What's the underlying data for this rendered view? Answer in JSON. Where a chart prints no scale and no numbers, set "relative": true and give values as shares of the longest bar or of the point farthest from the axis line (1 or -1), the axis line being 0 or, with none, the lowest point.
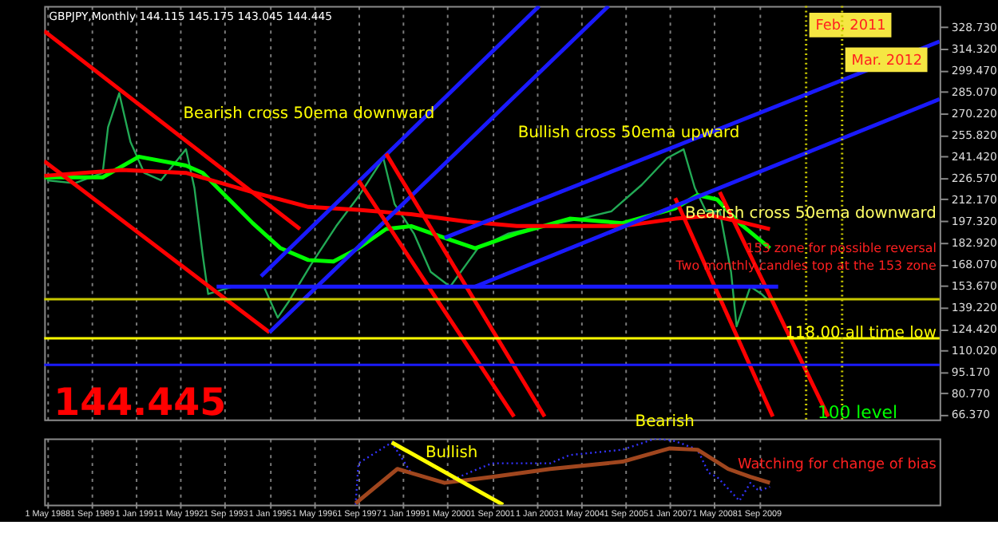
{
  "chart_data": [
    {
      "type": "line",
      "title": "GBPJPY,Monthly 144.115 145.175 143.045 144.445",
      "xlim": [
        "1988-04",
        "2015-02"
      ],
      "ylim": [
        63,
        343
      ],
      "xticks": [
        {
          "value": "1988-05-01",
          "label": null
        },
        {
          "value": "1989-09-01",
          "label": null
        },
        {
          "value": "1991-01-01",
          "label": null
        },
        {
          "value": "1992-05-01",
          "label": null
        },
        {
          "value": "1993-09-01",
          "label": null
        },
        {
          "value": "1995-01-01",
          "label": null
        },
        {
          "value": "1996-05-01",
          "label": null
        },
        {
          "value": "1997-09-01",
          "label": null
        },
        {
          "value": "1999-01-01",
          "label": null
        },
        {
          "value": "2000-05-01",
          "label": null
        },
        {
          "value": "2001-09-01",
          "label": null
        },
        {
          "value": "2003-01-01",
          "label": null
        },
        {
          "value": "2004-05-01",
          "label": null
        },
        {
          "value": "2005-09-01",
          "label": null
        },
        {
          "value": "2007-01-01",
          "label": null
        },
        {
          "value": "2008-05-01",
          "label": null
        },
        {
          "value": "2009-09-01",
          "label": null
        }
      ],
      "yticks": [
        {
          "value": 328.73,
          "label": "328.730"
        },
        {
          "value": 314.32,
          "label": "314.320"
        },
        {
          "value": 299.47,
          "label": "299.470"
        },
        {
          "value": 285.07,
          "label": "285.070"
        },
        {
          "value": 270.22,
          "label": "270.220"
        },
        {
          "value": 255.82,
          "label": "255.820"
        },
        {
          "value": 241.42,
          "label": "241.420"
        },
        {
          "value": 226.57,
          "label": "226.570"
        },
        {
          "value": 212.17,
          "label": "212.170"
        },
        {
          "value": 197.32,
          "label": "197.320"
        },
        {
          "value": 182.92,
          "label": "182.920"
        },
        {
          "value": 168.07,
          "label": "168.070"
        },
        {
          "value": 153.67,
          "label": "153.670"
        },
        {
          "value": 139.22,
          "label": "139.220"
        },
        {
          "value": 124.42,
          "label": "124.420"
        },
        {
          "value": 110.02,
          "label": "110.020"
        },
        {
          "value": 95.17,
          "label": "95.170"
        },
        {
          "value": 80.77,
          "label": "80.770"
        },
        {
          "value": 66.37,
          "label": "66.370"
        }
      ],
      "tick_labels": "y",
      "grid": "x",
      "series": [
        {
          "color": "#22aa55",
          "x": [
            "1988-05",
            "1989-03",
            "1990-01",
            "1990-03",
            "1990-07",
            "1990-11",
            "1991-04",
            "1991-10",
            "1992-07",
            "1992-10",
            "1993-01",
            "1993-03",
            "1993-12",
            "1994-11",
            "1995-04",
            "1995-08",
            "1996-04",
            "1997-01",
            "1997-09",
            "1998-06",
            "1998-10",
            "1999-05",
            "1999-11",
            "2000-06",
            "2001-04",
            "2002-03",
            "2003-03",
            "2004-05",
            "2005-04",
            "2006-03",
            "2006-12",
            "2007-06",
            "2007-10",
            "2008-02",
            "2008-07",
            "2008-11",
            "2009-01",
            "2009-06",
            "2009-10",
            "2009-12"
          ],
          "values": [
            225,
            223,
            230,
            261,
            284,
            251,
            230,
            225,
            246,
            220,
            174,
            148,
            153,
            153,
            132,
            143,
            168,
            194,
            214,
            240,
            209,
            189,
            163,
            153,
            179,
            189,
            194,
            199,
            204,
            222,
            240,
            246,
            220,
            204,
            204,
            163,
            126,
            153,
            148,
            144.445
          ]
        },
        {
          "color": "#00ff00",
          "x": [
            "1988-04",
            "1990-01",
            "1991-02",
            "1992-07",
            "1993-01",
            "1993-10",
            "1994-07",
            "1995-05",
            "1996-03",
            "1996-12",
            "1997-09",
            "1998-07",
            "1999-04",
            "2000-04",
            "2001-03",
            "2002-06",
            "2004-01",
            "2005-08",
            "2007-03",
            "2007-11",
            "2008-06",
            "2009-02",
            "2010-01"
          ],
          "values": [
            227,
            227,
            241,
            235,
            230,
            213,
            196,
            179,
            171,
            170,
            179,
            192,
            194,
            186,
            179,
            189,
            199,
            196,
            206,
            215,
            212,
            196,
            179
          ]
        },
        {
          "color": "#ff0000",
          "x": [
            "1988-04",
            "1990-08",
            "1992-07",
            "1994-07",
            "1996-03",
            "1997-09",
            "1999-04",
            "2000-12",
            "2002-06",
            "2005-08",
            "2007-03",
            "2008-04",
            "2009-02",
            "2010-01"
          ],
          "values": [
            228,
            232,
            230,
            217,
            207,
            205,
            202,
            197,
            194,
            194,
            199,
            201,
            197,
            192
          ]
        },
        {
          "color": "#ff0000",
          "x": [
            "1988-04",
            "1995-12"
          ],
          "values": [
            326,
            192
          ]
        },
        {
          "color": "#ff0000",
          "x": [
            "1988-04",
            "1995-01"
          ],
          "values": [
            238,
            122
          ]
        },
        {
          "color": "#1a1aff",
          "x": [
            "1994-10",
            "2003-02"
          ],
          "values": [
            160,
            343
          ]
        },
        {
          "color": "#1a1aff",
          "x": [
            "1995-01",
            "2005-03"
          ],
          "values": [
            122,
            343
          ]
        },
        {
          "color": "#ff0000",
          "x": [
            "1997-09",
            "2002-05"
          ],
          "values": [
            225,
            65
          ]
        },
        {
          "color": "#ff0000",
          "x": [
            "1998-07",
            "2003-04"
          ],
          "values": [
            243,
            65
          ]
        },
        {
          "color": "#ff0000",
          "x": [
            "2007-03",
            "2010-02"
          ],
          "values": [
            213,
            65
          ]
        },
        {
          "color": "#ff0000",
          "x": [
            "2008-07",
            "2011-10"
          ],
          "values": [
            217,
            65
          ]
        },
        {
          "color": "#1a1aff",
          "x": [
            "2000-04",
            "2015-02"
          ],
          "values": [
            186,
            319
          ]
        },
        {
          "color": "#1a1aff",
          "x": [
            "2001-03",
            "2015-02"
          ],
          "values": [
            153,
            280
          ]
        },
        {
          "color": "#1a1aff",
          "x": [
            "1993-06",
            "2010-04"
          ],
          "values": [
            153,
            153
          ]
        }
      ],
      "ref_lines": [
        {
          "axis": "y",
          "value": 144.445,
          "color": "#c8c800"
        },
        {
          "axis": "y",
          "value": 118,
          "color": "#ffff00"
        },
        {
          "axis": "y",
          "value": 100,
          "color": "#1a1aff"
        },
        {
          "axis": "x",
          "value": "2011-02",
          "label": "Feb. 2011",
          "color": "#c8c800",
          "line_style": "dotted"
        },
        {
          "axis": "x",
          "value": "2012-03",
          "label": "Mar. 2012",
          "color": "#c8c800",
          "line_style": "dotted"
        }
      ],
      "annotations": [
        "Bearish cross 50ema downward",
        "Bullish cross 50ema upward",
        "Bearish cross 50ema downward",
        "153 zone for possible reversal",
        "Two monthly candles top at the 153 zone",
        "118.00 all time low",
        "100 level",
        "144.445",
        "Bearish"
      ]
    },
    {
      "type": "line",
      "relative": true,
      "xlim": [
        "1988-04",
        "2015-02"
      ],
      "xticks": [
        {
          "value": "1988-05-01",
          "label": "1 May 1988"
        },
        {
          "value": "1989-09-01",
          "label": "1 Sep 1989"
        },
        {
          "value": "1991-01-01",
          "label": "1 Jan 1991"
        },
        {
          "value": "1992-05-01",
          "label": "1 May 1992"
        },
        {
          "value": "1993-09-01",
          "label": "1 Sep 1993"
        },
        {
          "value": "1995-01-01",
          "label": "1 Jan 1995"
        },
        {
          "value": "1996-05-01",
          "label": "1 May 1996"
        },
        {
          "value": "1997-09-01",
          "label": "1 Sep 1997"
        },
        {
          "value": "1999-01-01",
          "label": "1 Jan 1999"
        },
        {
          "value": "2000-05-01",
          "label": "1 May 2000"
        },
        {
          "value": "2001-09-01",
          "label": "1 Sep 2001"
        },
        {
          "value": "2003-01-01",
          "label": "1 Jan 2003"
        },
        {
          "value": "2004-05-01",
          "label": "1 May 2004"
        },
        {
          "value": "2005-09-01",
          "label": "1 Sep 2005"
        },
        {
          "value": "2007-01-01",
          "label": "1 Jan 2007"
        },
        {
          "value": "2008-05-01",
          "label": "1 May 2008"
        },
        {
          "value": "2009-09-01",
          "label": "1 Sep 2009"
        }
      ],
      "grid": "x",
      "series": [
        {
          "color": "#3333ff",
          "line_style": "dotted",
          "x": [
            "1997-08",
            "1997-09",
            "1998-09",
            "1999-04",
            "2000-04",
            "2001-09",
            "2003-06",
            "2004-01",
            "2005-08",
            "2006-08",
            "2007-03",
            "2007-11",
            "2008-03",
            "2008-06",
            "2009-02",
            "2009-06",
            "2009-09",
            "2010-01"
          ],
          "values": [
            0,
            0.625,
            0.94,
            0.48,
            0.33,
            0.625,
            0.625,
            0.75,
            0.83,
            1,
            0.96,
            0.83,
            0.48,
            0.42,
            0.06,
            0.33,
            0.21,
            0.27
          ]
        },
        {
          "color": "#a0461e",
          "x": [
            "1997-08",
            "1998-11",
            "2000-04",
            "2001-09",
            "2003-06",
            "2005-08",
            "2007-01",
            "2007-11",
            "2008-10",
            "2009-06",
            "2010-01"
          ],
          "values": [
            0.02,
            0.54,
            0.33,
            0.42,
            0.54,
            0.65,
            0.85,
            0.83,
            0.54,
            0.42,
            0.33
          ]
        },
        {
          "color": "#ffff00",
          "x": [
            "1998-09",
            "2002-01"
          ],
          "values": [
            0.94,
            0
          ]
        }
      ],
      "annotations": [
        "Bullish",
        "Watching for change of bias"
      ]
    }
  ]
}
